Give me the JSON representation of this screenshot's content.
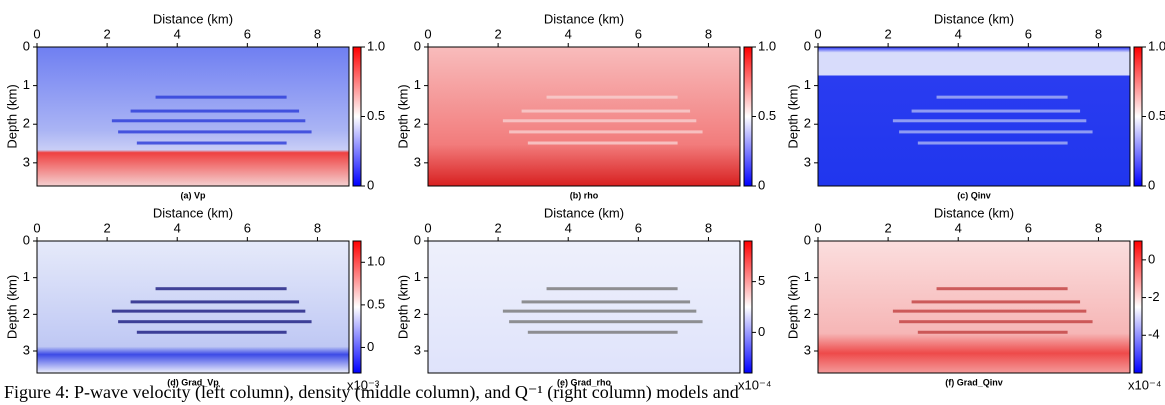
{
  "panels": [
    {
      "x_label": "Distance (km)",
      "y_label": "Depth (km)",
      "xlim": [
        0,
        8.9
      ],
      "ylim": [
        0,
        3.6
      ],
      "xticks": [
        0,
        2,
        4,
        6,
        8
      ],
      "yticks": [
        0,
        1,
        2,
        3
      ],
      "caption": "(a) Vp",
      "colorbar": {
        "lim": [
          0,
          1
        ],
        "ticks": [
          0,
          0.5,
          {
            "value": 1,
            "label": "1.0"
          }
        ]
      }
    },
    {
      "x_label": "Distance (km)",
      "y_label": "Depth (km)",
      "xlim": [
        0,
        8.9
      ],
      "ylim": [
        0,
        3.6
      ],
      "xticks": [
        0,
        2,
        4,
        6,
        8
      ],
      "yticks": [
        0,
        1,
        2,
        3
      ],
      "caption": "(b) rho",
      "colorbar": {
        "lim": [
          0,
          1
        ],
        "ticks": [
          0,
          0.5,
          {
            "value": 1,
            "label": "1.0"
          }
        ]
      }
    },
    {
      "x_label": "Distance (km)",
      "y_label": "Depth (km)",
      "xlim": [
        0,
        8.9
      ],
      "ylim": [
        0,
        3.6
      ],
      "xticks": [
        0,
        2,
        4,
        6,
        8
      ],
      "yticks": [
        0,
        1,
        2,
        3
      ],
      "caption": "(c) Qinv",
      "colorbar": {
        "lim": [
          0,
          1
        ],
        "ticks": [
          0,
          0.5,
          {
            "value": 1,
            "label": "1.0"
          }
        ]
      }
    },
    {
      "x_label": "Distance (km)",
      "y_label": "Depth (km)",
      "xlim": [
        0,
        8.9
      ],
      "ylim": [
        0,
        3.6
      ],
      "xticks": [
        0,
        2,
        4,
        6,
        8
      ],
      "yticks": [
        0,
        1,
        2,
        3
      ],
      "caption": "(d) Grad_Vp",
      "colorbar": {
        "lim": [
          -0.3,
          1.25
        ],
        "ticks": [
          0,
          0.5,
          {
            "value": 1,
            "label": "1.0"
          }
        ],
        "exponent": "x10⁻³"
      }
    },
    {
      "x_label": "Distance (km)",
      "y_label": "Depth (km)",
      "xlim": [
        0,
        8.9
      ],
      "ylim": [
        0,
        3.6
      ],
      "xticks": [
        0,
        2,
        4,
        6,
        8
      ],
      "yticks": [
        0,
        1,
        2,
        3
      ],
      "caption": "(e) Grad_rho",
      "colorbar": {
        "lim": [
          -4,
          9
        ],
        "ticks": [
          0,
          5
        ],
        "exponent": "x10⁻⁴"
      }
    },
    {
      "x_label": "Distance (km)",
      "y_label": "Depth (km)",
      "xlim": [
        0,
        8.9
      ],
      "ylim": [
        0,
        3.6
      ],
      "xticks": [
        0,
        2,
        4,
        6,
        8
      ],
      "yticks": [
        0,
        1,
        2,
        3
      ],
      "caption": "(f) Grad_Qinv",
      "colorbar": {
        "lim": [
          -6,
          1
        ],
        "ticks": [
          -4,
          -2,
          0
        ],
        "exponent": "x10⁻⁴"
      }
    }
  ],
  "figure_caption": "Figure 4: P-wave velocity (left column), density (middle column), and Q⁻¹ (right column) models and"
}
